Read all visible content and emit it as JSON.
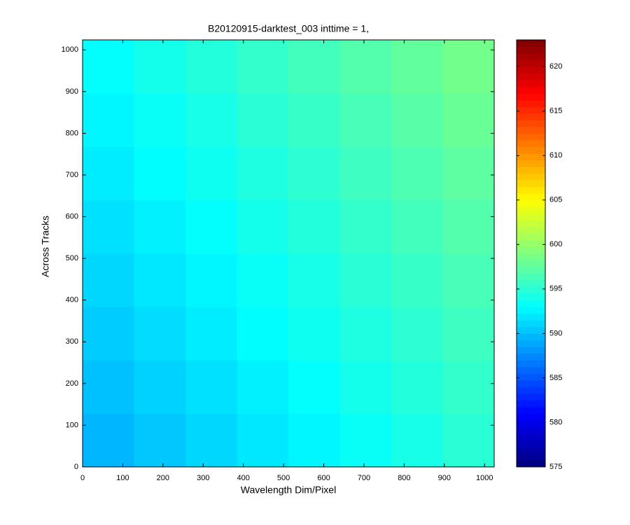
{
  "chart_data": {
    "type": "heatmap",
    "title": "B20120915-darktest_003 inttime = 1,",
    "x_label": "Wavelength Dim/Pixel",
    "y_label": "Across Tracks",
    "x_edges": [
      0,
      128,
      256,
      384,
      512,
      640,
      768,
      896,
      1024
    ],
    "y_edges": [
      0,
      128,
      256,
      384,
      512,
      640,
      768,
      896,
      1024
    ],
    "values": [
      [
        589.6,
        590.4,
        591.1,
        591.9,
        592.6,
        593.4,
        594.1,
        594.9
      ],
      [
        590.1,
        590.9,
        591.6,
        592.4,
        593.1,
        593.9,
        594.6,
        595.4
      ],
      [
        590.6,
        591.4,
        592.1,
        592.9,
        593.6,
        594.4,
        595.1,
        595.9
      ],
      [
        591.1,
        591.9,
        592.6,
        593.4,
        594.1,
        594.9,
        595.6,
        596.4
      ],
      [
        591.6,
        592.4,
        593.1,
        593.9,
        594.6,
        595.4,
        596.1,
        596.9
      ],
      [
        592.1,
        592.9,
        593.6,
        594.4,
        595.1,
        595.9,
        596.6,
        597.4
      ],
      [
        592.6,
        593.4,
        594.1,
        594.9,
        595.6,
        596.4,
        597.1,
        597.9
      ],
      [
        593.1,
        593.9,
        594.6,
        595.4,
        596.1,
        596.9,
        597.6,
        598.4
      ]
    ],
    "xlim": [
      0,
      1024
    ],
    "ylim": [
      0,
      1024
    ],
    "xticks": [
      0,
      100,
      200,
      300,
      400,
      500,
      600,
      700,
      800,
      900,
      1000
    ],
    "yticks": [
      0,
      100,
      200,
      300,
      400,
      500,
      600,
      700,
      800,
      900,
      1000
    ],
    "colormap": "jet",
    "clim": [
      575,
      623
    ],
    "cticks": [
      575,
      580,
      585,
      590,
      595,
      600,
      605,
      610,
      615,
      620
    ]
  }
}
